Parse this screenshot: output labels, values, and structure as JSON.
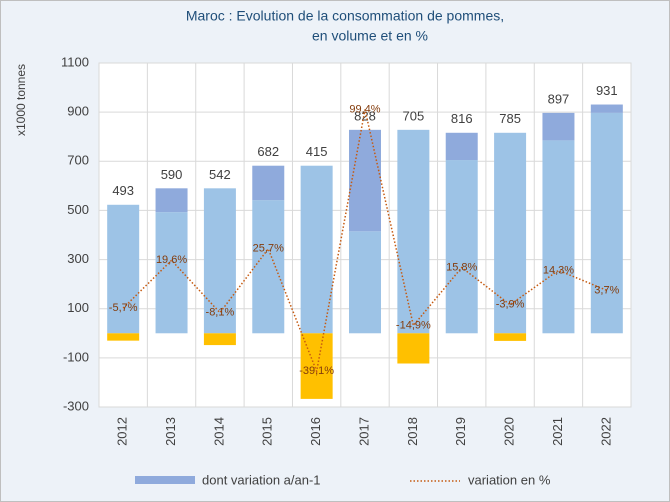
{
  "chart_data": {
    "type": "bar",
    "title": "Maroc : Evolution de la consommation de  pommes,",
    "subtitle": "en volume et en %",
    "y_label": "x1000 tonnes",
    "categories": [
      "2012",
      "2013",
      "2014",
      "2015",
      "2016",
      "2017",
      "2018",
      "2019",
      "2020",
      "2021",
      "2022"
    ],
    "series": [
      {
        "color": "#9dc3e6",
        "values": [
          523,
          493,
          590,
          542,
          682,
          415,
          828,
          705,
          816,
          785,
          897
        ]
      },
      {
        "name": "dont variation a/an-1",
        "color": "#8faadc",
        "negative_color": "#ffc000",
        "values": [
          -30,
          97,
          -48,
          140,
          -267,
          413,
          -123,
          111,
          -31,
          112,
          34
        ]
      },
      {
        "name": "variation en %",
        "type": "line",
        "axis": "y2",
        "color": "#c55a11",
        "values": [
          -5.7,
          19.6,
          -8.1,
          25.7,
          -39.1,
          99.4,
          -14.9,
          15.8,
          -3.9,
          14.3,
          3.7
        ],
        "value_labels": [
          "-5,7%",
          "19,6%",
          "-8,1%",
          "25,7%",
          "-39,1%",
          "99,4%",
          "-14,9%",
          "15,8%",
          "-3,9%",
          "14,3%",
          "3,7%"
        ]
      }
    ],
    "totals": [
      493,
      590,
      542,
      682,
      415,
      828,
      705,
      816,
      785,
      897,
      931
    ],
    "ylim": [
      -300,
      1100
    ],
    "yticks": [
      -300,
      -100,
      100,
      300,
      500,
      700,
      900,
      1100
    ],
    "y2lim": [
      -58,
      124
    ],
    "grid": true,
    "legend": "bottom"
  }
}
